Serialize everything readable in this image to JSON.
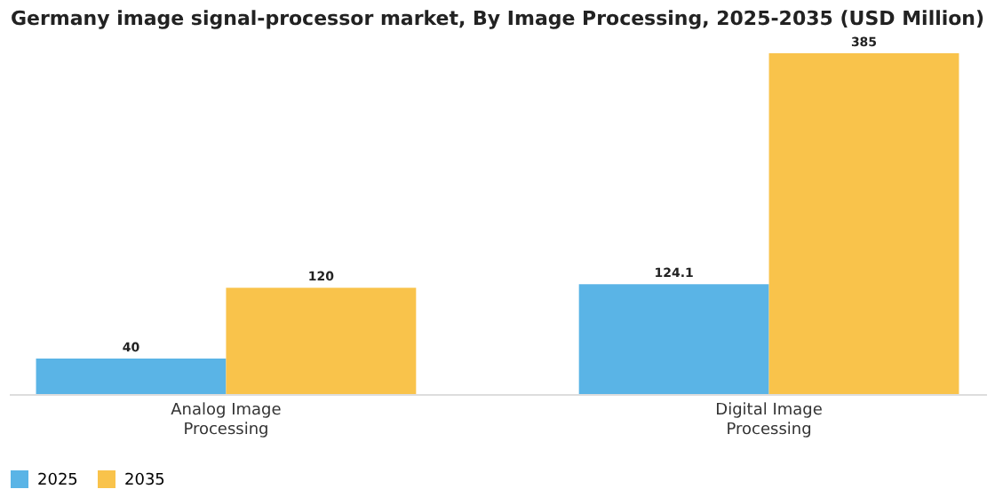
{
  "chart_data": {
    "type": "bar",
    "title": "Germany image signal-processor market, By Image Processing, 2025-2035 (USD Million)",
    "categories": [
      "Analog Image Processing",
      "Digital Image Processing"
    ],
    "series": [
      {
        "name": "2025",
        "color": "#5ab4e6",
        "values": [
          40,
          124.1
        ]
      },
      {
        "name": "2035",
        "color": "#f9c34b",
        "values": [
          120,
          385
        ]
      }
    ],
    "data_labels": true,
    "legend": "bottom",
    "grid": false,
    "tick_labels": "x"
  }
}
